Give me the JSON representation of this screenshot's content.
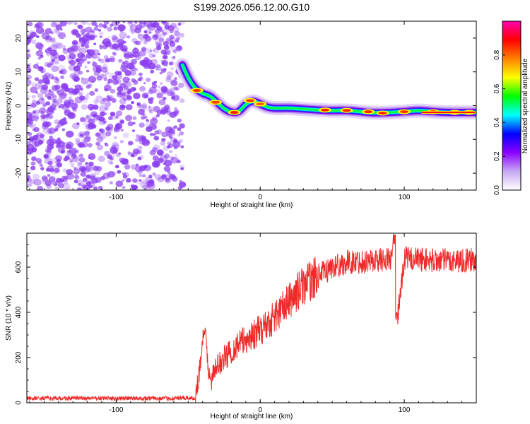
{
  "title": "S199.2026.056.12.00.G10",
  "colors": {
    "line": "#ee2a2a",
    "background": "#ffffff",
    "noise": "#8a3cf0",
    "colorbar": [
      "#ffffff",
      "#c8a8f4",
      "#8a00ff",
      "#0000ff",
      "#00ffff",
      "#00ff00",
      "#ffff00",
      "#ff8000",
      "#ff0000",
      "#ff00b0"
    ]
  },
  "chart_data": [
    {
      "type": "heatmap",
      "name": "spectrogram",
      "xlabel": "Height of straight line (km)",
      "ylabel": "Frequency (Hz)",
      "xlim": [
        -162,
        150
      ],
      "ylim": [
        -25,
        25
      ],
      "xticks": [
        -100,
        0,
        100
      ],
      "xtick_labels": [
        "-100",
        "0",
        "100"
      ],
      "yticks": [
        20,
        10,
        0,
        -10,
        -20
      ],
      "ytick_labels": [
        "20",
        "10",
        "0",
        "-10",
        "-20"
      ],
      "noise_region": [
        -162,
        -54
      ],
      "ridge": {
        "x": [
          -54,
          -50,
          -45,
          -40,
          -35,
          -30,
          -25,
          -20,
          -15,
          -10,
          -5,
          0,
          5,
          10,
          20,
          30,
          40,
          50,
          60,
          70,
          80,
          90,
          100,
          110,
          120,
          130,
          140,
          150
        ],
        "y": [
          12,
          8,
          5,
          3.5,
          3,
          1,
          -1,
          -2,
          -2,
          0.5,
          1.5,
          0.5,
          -0.5,
          -0.8,
          -0.7,
          -1,
          -1.3,
          -1.5,
          -1.4,
          -1.8,
          -2.2,
          -2.0,
          -1.8,
          -1.4,
          -1.8,
          -2.0,
          -2.0,
          -2.0
        ]
      },
      "colorbar": {
        "label": "Normalized spectral amplitude",
        "ticks": [
          0.0,
          0.2,
          0.4,
          0.6,
          0.8
        ],
        "tick_labels": [
          "0.0",
          "0.2",
          "0.4",
          "0.6",
          "0.8"
        ],
        "range": [
          0,
          1
        ]
      }
    },
    {
      "type": "line",
      "name": "snr",
      "xlabel": "Height of straight line (km)",
      "ylabel": "SNR (10 * v/v)",
      "xlim": [
        -162,
        150
      ],
      "ylim": [
        0,
        750
      ],
      "xticks": [
        -100,
        0,
        100
      ],
      "xtick_labels": [
        "-100",
        "0",
        "100"
      ],
      "yticks": [
        0,
        200,
        400,
        600
      ],
      "ytick_labels": [
        "0",
        "200",
        "400",
        "600"
      ],
      "series": [
        {
          "name": "SNR",
          "envelope": {
            "x": [
              -162,
              -60,
              -45,
              -42,
              -40,
              -38,
              -35,
              -30,
              -25,
              -20,
              -15,
              -10,
              -5,
              0,
              10,
              20,
              30,
              40,
              50,
              60,
              80,
              94,
              95,
              100,
              120,
              150
            ],
            "y": [
              20,
              20,
              22,
              150,
              280,
              300,
              90,
              160,
              200,
              230,
              260,
              280,
              300,
              320,
              380,
              450,
              520,
              560,
              600,
              620,
              630,
              640,
              360,
              640,
              630,
              630
            ]
          }
        }
      ]
    }
  ]
}
